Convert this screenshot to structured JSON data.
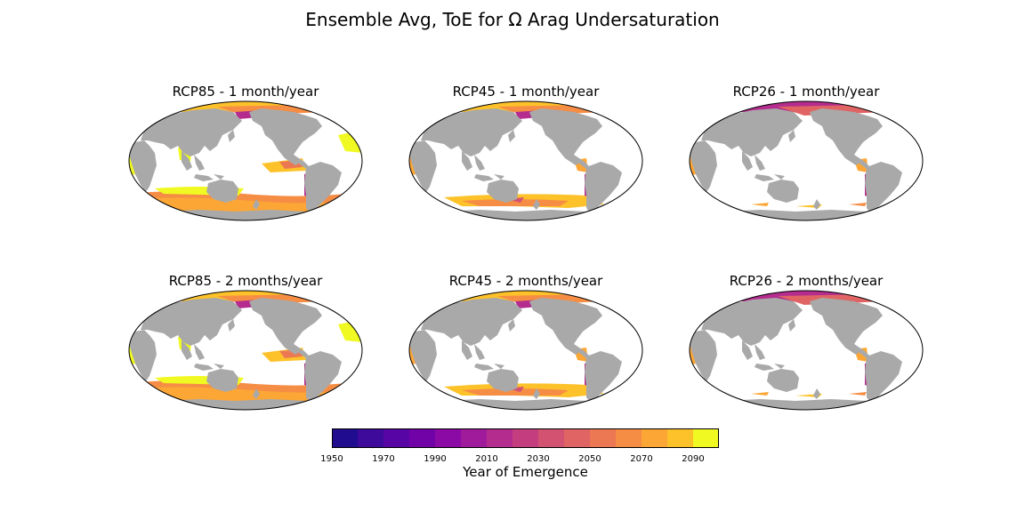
{
  "chart_data": {
    "type": "heatmap",
    "title": "Ensemble Avg, ToE for Ω Arag Undersaturation",
    "panels": [
      {
        "title": "RCP85 - 1 month/year",
        "scenario": "RCP85",
        "threshold_months_per_year": 1
      },
      {
        "title": "RCP45 - 1 month/year",
        "scenario": "RCP45",
        "threshold_months_per_year": 1
      },
      {
        "title": "RCP26 - 1 month/year",
        "scenario": "RCP26",
        "threshold_months_per_year": 1
      },
      {
        "title": "RCP85 - 2 months/year",
        "scenario": "RCP85",
        "threshold_months_per_year": 2
      },
      {
        "title": "RCP45 - 2 months/year",
        "scenario": "RCP45",
        "threshold_months_per_year": 2
      },
      {
        "title": "RCP26 - 2 months/year",
        "scenario": "RCP26",
        "threshold_months_per_year": 2
      }
    ],
    "colorbar": {
      "label": "Year of Emergence",
      "range": [
        1950,
        2100
      ],
      "step": 10,
      "tick_labels": [
        "1950",
        "1970",
        "1990",
        "2010",
        "2030",
        "2050",
        "2070",
        "2090"
      ],
      "colors": [
        "#1f0c8e",
        "#3d0a9c",
        "#5805a6",
        "#7102a8",
        "#8b0aa5",
        "#a01a9c",
        "#b32c8e",
        "#c43e7f",
        "#d35171",
        "#e06463",
        "#ec7853",
        "#f68d45",
        "#fca636",
        "#fdc229",
        "#f0f921"
      ]
    },
    "colors": {
      "land": "#a9a9a9",
      "ocean_no_emergence": "#ffffff",
      "frame": "#000000"
    }
  }
}
